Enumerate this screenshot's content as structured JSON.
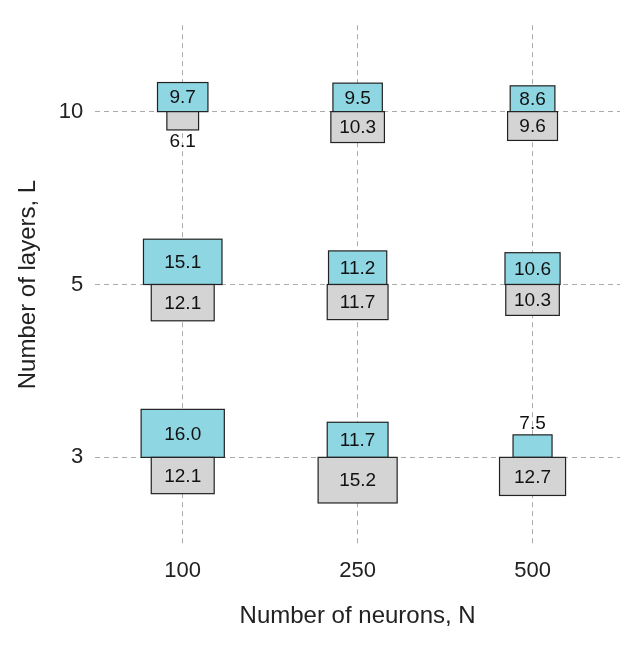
{
  "chart_data": {
    "type": "tile",
    "xlabel": "Number of neurons, N",
    "ylabel": "Number of layers, L",
    "categories": [
      "100",
      "250",
      "500"
    ],
    "y_categories": [
      "3",
      "5",
      "10"
    ],
    "grid": true,
    "data_labels": true,
    "series": [
      {
        "color": "#8fd6e3",
        "values": [
          [
            16.0,
            11.7,
            7.5
          ],
          [
            15.1,
            11.2,
            10.6
          ],
          [
            9.7,
            9.5,
            8.6
          ]
        ],
        "value_labels": [
          [
            "16.0",
            "11.7",
            "7.5"
          ],
          [
            "15.1",
            "11.2",
            "10.6"
          ],
          [
            "9.7",
            "9.5",
            "8.6"
          ]
        ]
      },
      {
        "color": "#d4d4d4",
        "values": [
          [
            12.1,
            15.2,
            12.7
          ],
          [
            12.1,
            11.7,
            10.3
          ],
          [
            6.1,
            10.3,
            9.6
          ]
        ],
        "value_labels": [
          [
            "12.1",
            "15.2",
            "12.7"
          ],
          [
            "12.1",
            "11.7",
            "10.3"
          ],
          [
            "6.1",
            "10.3",
            "9.6"
          ]
        ]
      }
    ]
  }
}
